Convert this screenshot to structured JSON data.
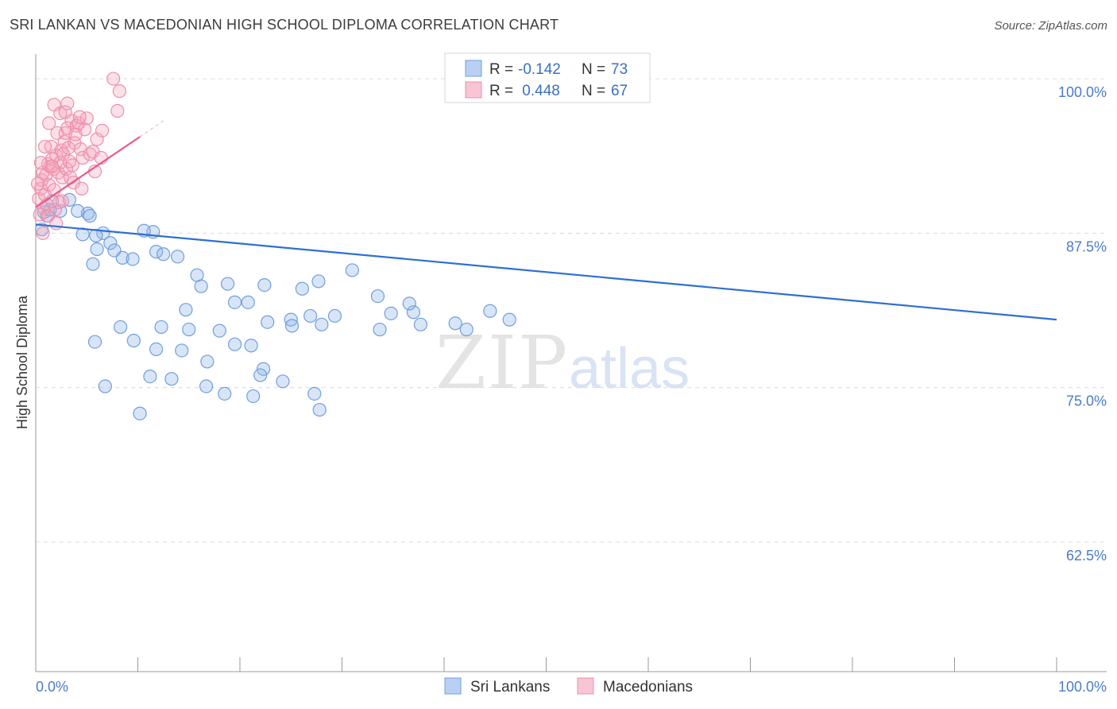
{
  "header": {
    "title": "SRI LANKAN VS MACEDONIAN HIGH SCHOOL DIPLOMA CORRELATION CHART",
    "source": "Source: ZipAtlas.com"
  },
  "watermark": {
    "zip": "ZIP",
    "atlas": "atlas"
  },
  "chart_data": {
    "type": "scatter",
    "title": "SRI LANKAN VS MACEDONIAN HIGH SCHOOL DIPLOMA CORRELATION CHART",
    "xlabel": "",
    "ylabel": "High School Diploma",
    "xlim": [
      0,
      100
    ],
    "ylim": [
      52,
      102
    ],
    "x_tick_labels": {
      "left": "0.0%",
      "right": "100.0%"
    },
    "y_ticks": [
      {
        "value": 100,
        "label": "100.0%"
      },
      {
        "value": 87.5,
        "label": "87.5%"
      },
      {
        "value": 75,
        "label": "75.0%"
      },
      {
        "value": 62.5,
        "label": "62.5%"
      }
    ],
    "legend": {
      "placement": "top-center",
      "entries": [
        {
          "r_label": "R =",
          "r_value": "-0.142",
          "n_label": "N =",
          "n_value": "73"
        },
        {
          "r_label": "R =",
          "r_value": " 0.448",
          "n_label": "N =",
          "n_value": "67"
        }
      ]
    },
    "series": [
      {
        "name": "Sri Lankans",
        "color": "#8fb4e8",
        "stroke": "#6f9fdc",
        "trend_color": "#2e6fd1",
        "trend": {
          "x": [
            0,
            100
          ],
          "y": [
            88.2,
            80.5
          ]
        },
        "points": [
          [
            0.6,
            87.8
          ],
          [
            0.8,
            89.2
          ],
          [
            1.1,
            88.9
          ],
          [
            1.4,
            89.4
          ],
          [
            1.6,
            90.1
          ],
          [
            2.4,
            89.3
          ],
          [
            3.3,
            90.2
          ],
          [
            4.1,
            89.3
          ],
          [
            5.1,
            89.1
          ],
          [
            5.3,
            88.9
          ],
          [
            6.6,
            87.5
          ],
          [
            5.9,
            87.3
          ],
          [
            4.6,
            87.4
          ],
          [
            6.0,
            86.2
          ],
          [
            5.6,
            85.0
          ],
          [
            7.3,
            86.7
          ],
          [
            7.7,
            86.1
          ],
          [
            8.5,
            85.5
          ],
          [
            9.5,
            85.4
          ],
          [
            11.5,
            87.6
          ],
          [
            10.6,
            87.7
          ],
          [
            11.8,
            86.0
          ],
          [
            12.5,
            85.8
          ],
          [
            13.9,
            85.6
          ],
          [
            15.8,
            84.1
          ],
          [
            16.2,
            83.2
          ],
          [
            22.4,
            83.3
          ],
          [
            27.7,
            83.6
          ],
          [
            26.1,
            83.0
          ],
          [
            33.5,
            82.4
          ],
          [
            19.5,
            81.9
          ],
          [
            18.8,
            83.4
          ],
          [
            14.7,
            81.3
          ],
          [
            20.8,
            81.9
          ],
          [
            18.0,
            79.6
          ],
          [
            22.7,
            80.3
          ],
          [
            29.3,
            80.8
          ],
          [
            34.8,
            81.0
          ],
          [
            37.0,
            81.1
          ],
          [
            37.7,
            80.1
          ],
          [
            44.5,
            81.2
          ],
          [
            42.2,
            79.7
          ],
          [
            46.4,
            80.5
          ],
          [
            25.0,
            80.5
          ],
          [
            19.5,
            78.5
          ],
          [
            21.1,
            78.4
          ],
          [
            22.3,
            76.5
          ],
          [
            21.3,
            74.3
          ],
          [
            16.7,
            75.1
          ],
          [
            15.0,
            79.7
          ],
          [
            14.3,
            78.0
          ],
          [
            5.8,
            78.7
          ],
          [
            8.3,
            79.9
          ],
          [
            9.6,
            78.8
          ],
          [
            12.3,
            79.9
          ],
          [
            11.8,
            78.1
          ],
          [
            16.8,
            77.1
          ],
          [
            6.8,
            75.1
          ],
          [
            10.2,
            72.9
          ],
          [
            11.2,
            75.9
          ],
          [
            13.3,
            75.7
          ],
          [
            18.5,
            74.5
          ],
          [
            22.0,
            76.0
          ],
          [
            24.2,
            75.5
          ],
          [
            25.1,
            80.0
          ],
          [
            26.9,
            80.8
          ],
          [
            28.0,
            80.1
          ],
          [
            27.3,
            74.5
          ],
          [
            27.8,
            73.2
          ],
          [
            31.0,
            84.5
          ],
          [
            33.7,
            79.7
          ],
          [
            36.6,
            81.8
          ],
          [
            41.1,
            80.2
          ]
        ]
      },
      {
        "name": "Macedonians",
        "color": "#f4a6bd",
        "stroke": "#ee8fab",
        "trend_color": "#e8588a",
        "trend": {
          "x": [
            0,
            10.2
          ],
          "y": [
            89.6,
            95.3
          ]
        },
        "points": [
          [
            0.3,
            90.3
          ],
          [
            0.5,
            91.1
          ],
          [
            0.6,
            91.8
          ],
          [
            0.7,
            92.4
          ],
          [
            0.8,
            89.5
          ],
          [
            0.9,
            90.6
          ],
          [
            1.0,
            92.2
          ],
          [
            1.1,
            89.8
          ],
          [
            1.2,
            93.1
          ],
          [
            1.3,
            91.4
          ],
          [
            1.4,
            92.9
          ],
          [
            1.5,
            94.5
          ],
          [
            1.6,
            93.5
          ],
          [
            1.7,
            92.7
          ],
          [
            1.8,
            91.0
          ],
          [
            1.9,
            89.4
          ],
          [
            2.0,
            93.8
          ],
          [
            2.1,
            95.6
          ],
          [
            2.2,
            92.4
          ],
          [
            2.3,
            90.0
          ],
          [
            2.4,
            93.2
          ],
          [
            2.5,
            94.2
          ],
          [
            2.6,
            92.0
          ],
          [
            2.7,
            93.9
          ],
          [
            2.8,
            94.9
          ],
          [
            2.9,
            95.6
          ],
          [
            3.0,
            92.7
          ],
          [
            3.1,
            96.0
          ],
          [
            3.2,
            94.4
          ],
          [
            3.3,
            93.3
          ],
          [
            3.4,
            92.0
          ],
          [
            3.5,
            96.6
          ],
          [
            3.6,
            93.0
          ],
          [
            3.8,
            94.8
          ],
          [
            4.0,
            96.2
          ],
          [
            4.2,
            96.4
          ],
          [
            4.4,
            94.3
          ],
          [
            4.6,
            93.6
          ],
          [
            4.8,
            95.9
          ],
          [
            5.0,
            96.8
          ],
          [
            5.3,
            93.9
          ],
          [
            5.6,
            94.1
          ],
          [
            6.0,
            95.1
          ],
          [
            6.4,
            93.6
          ],
          [
            0.4,
            89.0
          ],
          [
            0.9,
            94.5
          ],
          [
            1.3,
            96.4
          ],
          [
            1.8,
            97.9
          ],
          [
            2.4,
            97.2
          ],
          [
            3.1,
            98.0
          ],
          [
            4.3,
            96.9
          ],
          [
            6.5,
            95.8
          ],
          [
            8.0,
            97.4
          ],
          [
            8.2,
            99.0
          ],
          [
            7.6,
            100.0
          ],
          [
            0.2,
            91.5
          ],
          [
            0.5,
            93.2
          ],
          [
            1.2,
            88.9
          ],
          [
            2.0,
            88.3
          ],
          [
            2.6,
            90.1
          ],
          [
            3.7,
            91.6
          ],
          [
            4.5,
            91.1
          ],
          [
            5.8,
            92.5
          ],
          [
            0.7,
            87.5
          ],
          [
            1.6,
            92.9
          ],
          [
            2.9,
            97.3
          ],
          [
            3.9,
            95.5
          ]
        ]
      }
    ]
  },
  "bottom_legend": {
    "items": [
      "Sri Lankans",
      "Macedonians"
    ]
  }
}
